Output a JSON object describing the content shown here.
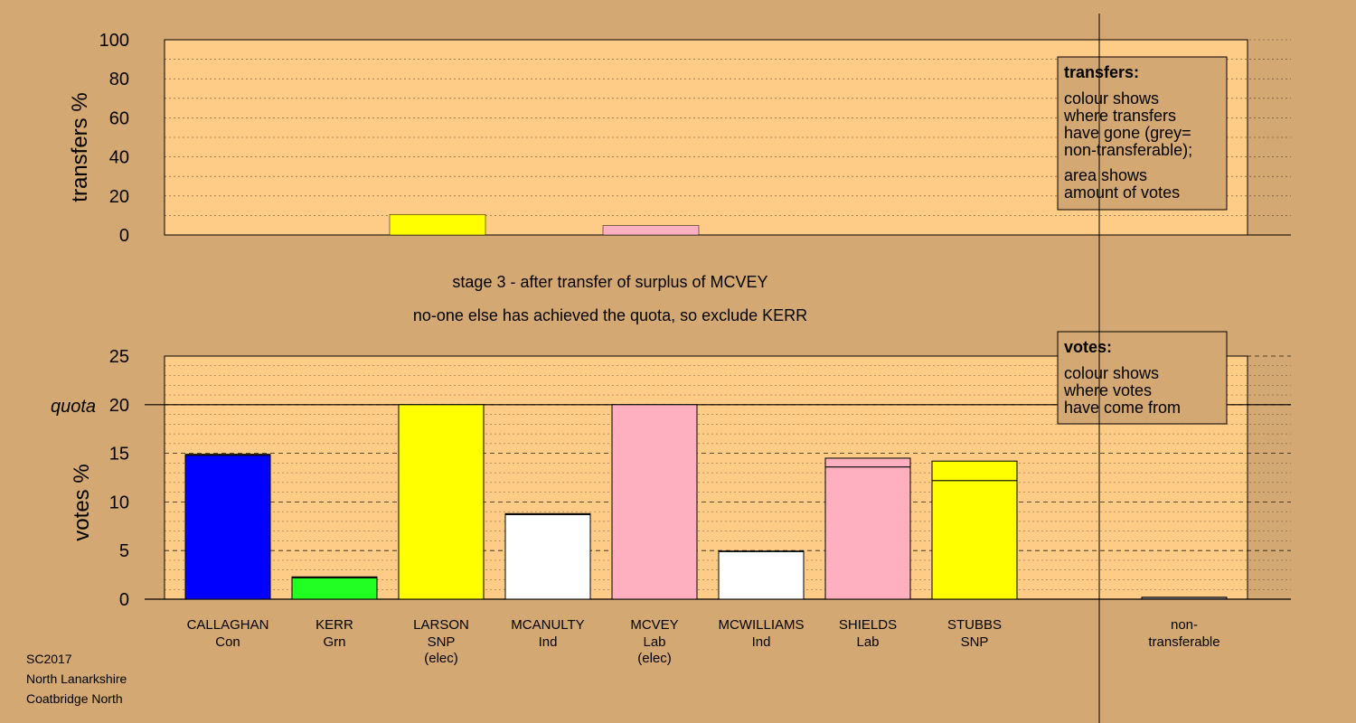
{
  "colors": {
    "background": "#d4a873",
    "plot_background": "#ffcc88",
    "blue": "#0000ff",
    "green": "#22ff22",
    "yellow": "#ffff00",
    "white": "#ffffff",
    "pink": "#ffb0c0",
    "grey": "#808080"
  },
  "stage": {
    "line1": "stage 3 - after transfer of surplus of MCVEY",
    "line2": "no-one else has achieved the quota, so exclude KERR"
  },
  "footer": {
    "line1": "SC2017",
    "line2": "North Lanarkshire",
    "line3": "Coatbridge North"
  },
  "transfers_legend": {
    "title": "transfers:",
    "lines": [
      "colour shows",
      "where transfers",
      "have gone (grey=",
      "non-transferable);",
      "area shows",
      "amount of votes"
    ]
  },
  "votes_legend": {
    "title": "votes:",
    "lines": [
      "colour shows",
      "where votes",
      "have come from"
    ]
  },
  "chart_data": [
    {
      "type": "bar",
      "name": "transfers",
      "ylabel": "transfers %",
      "ylim": [
        0,
        100
      ],
      "yticks": [
        0,
        20,
        40,
        60,
        80,
        100
      ],
      "grid": true,
      "bars": [
        {
          "candidate": "LARSON",
          "width_pct": 10.5,
          "segments": [
            {
              "color": "yellow",
              "value": 100
            }
          ]
        },
        {
          "candidate": "MCVEY",
          "width_pct": 4.8,
          "segments": [
            {
              "color": "pink",
              "value": 100
            }
          ]
        }
      ]
    },
    {
      "type": "bar",
      "name": "votes",
      "ylabel": "votes %",
      "ylim": [
        0,
        25
      ],
      "yticks": [
        0,
        5,
        10,
        15,
        20,
        25
      ],
      "quota": 20,
      "quota_label": "quota",
      "grid": true,
      "candidates": [
        {
          "name": "CALLAGHAN",
          "party": "Con",
          "elected": "",
          "segments": [
            {
              "color": "blue",
              "value": 14.8
            },
            {
              "color": "pink",
              "value": 0.1
            }
          ]
        },
        {
          "name": "KERR",
          "party": "Grn",
          "elected": "",
          "segments": [
            {
              "color": "green",
              "value": 2.2
            },
            {
              "color": "pink",
              "value": 0.1
            }
          ]
        },
        {
          "name": "LARSON",
          "party": "SNP",
          "elected": "(elec)",
          "segments": [
            {
              "color": "yellow",
              "value": 20.0
            }
          ]
        },
        {
          "name": "MCANULTY",
          "party": "Ind",
          "elected": "",
          "segments": [
            {
              "color": "white",
              "value": 8.7
            },
            {
              "color": "pink",
              "value": 0.1
            }
          ]
        },
        {
          "name": "MCVEY",
          "party": "Lab",
          "elected": "(elec)",
          "segments": [
            {
              "color": "pink",
              "value": 20.0
            }
          ]
        },
        {
          "name": "MCWILLIAMS",
          "party": "Ind",
          "elected": "",
          "segments": [
            {
              "color": "white",
              "value": 4.9
            },
            {
              "color": "pink",
              "value": 0.05
            }
          ]
        },
        {
          "name": "SHIELDS",
          "party": "Lab",
          "elected": "",
          "segments": [
            {
              "color": "pink",
              "value": 13.6
            },
            {
              "color": "pink",
              "value": 0.9
            }
          ]
        },
        {
          "name": "STUBBS",
          "party": "SNP",
          "elected": "",
          "segments": [
            {
              "color": "yellow",
              "value": 12.2
            },
            {
              "color": "yellow",
              "value": 2.0
            }
          ]
        }
      ],
      "nontransferable": {
        "label1": "non-",
        "label2": "transferable",
        "value": 0.2
      }
    }
  ]
}
